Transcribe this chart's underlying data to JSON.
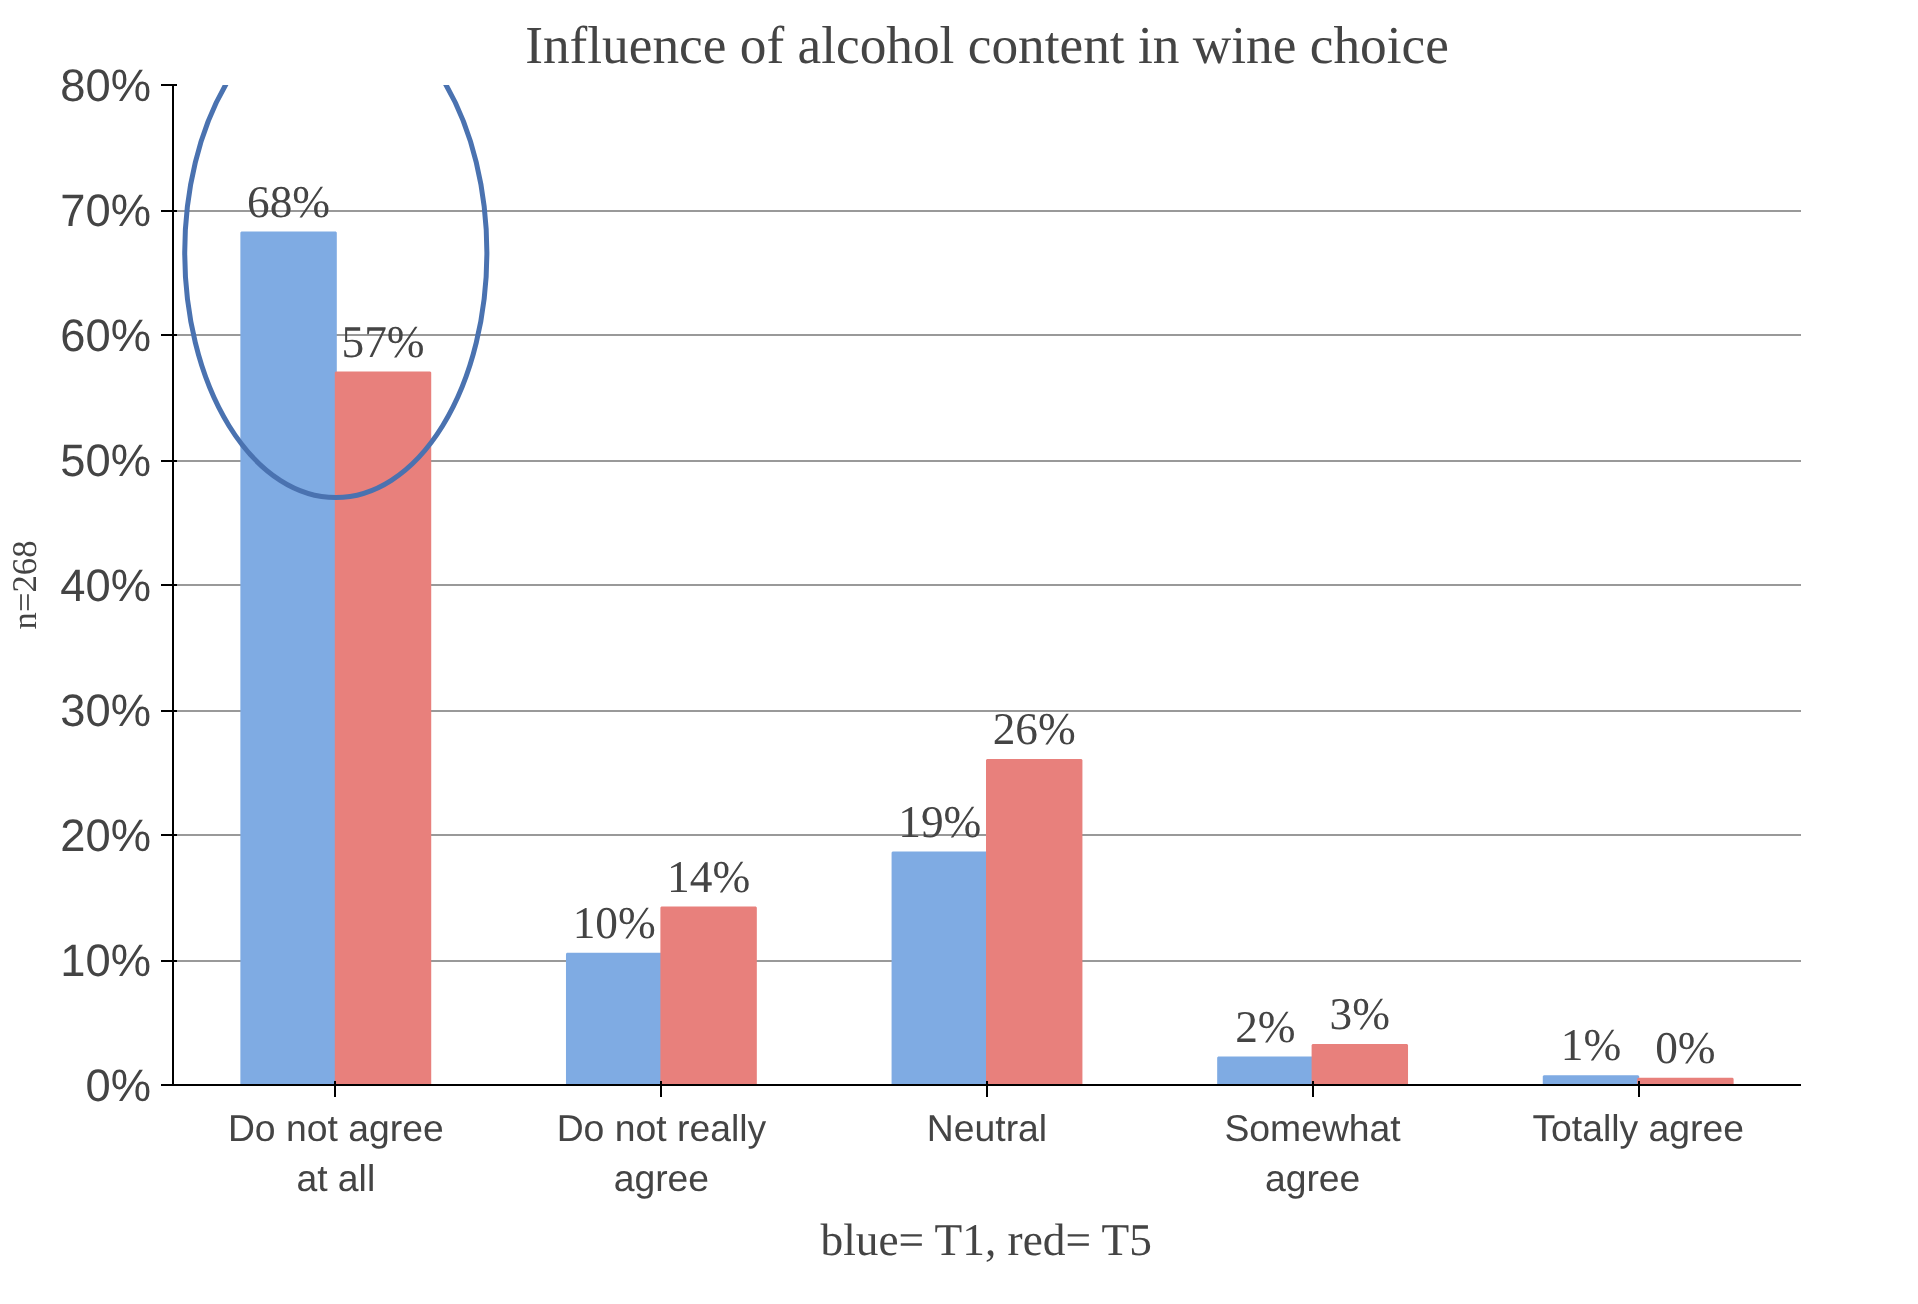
{
  "chart_data": {
    "type": "bar",
    "title": "Influence of alcohol content in wine choice",
    "xlabel": "blue= T1, red= T5",
    "ylabel": "n=268",
    "categories": [
      "Do not agree\nat all",
      "Do not really\nagree",
      "Neutral",
      "Somewhat\nagree",
      "Totally agree"
    ],
    "series": [
      {
        "color": "#7fabe3",
        "values": [
          68.2,
          10.5,
          18.6,
          2.2,
          0.7
        ],
        "value_labels": [
          "68%",
          "10%",
          "19%",
          "2%",
          "1%"
        ]
      },
      {
        "color": "#e8807c",
        "values": [
          57,
          14.2,
          26,
          3.2,
          0.5
        ],
        "value_labels": [
          "57%",
          "14%",
          "26%",
          "3%",
          "0%"
        ]
      }
    ],
    "ylim": [
      0,
      80
    ],
    "yticks": [
      {
        "value": 0,
        "label": "0%"
      },
      {
        "value": 10,
        "label": "10%"
      },
      {
        "value": 20,
        "label": "20%"
      },
      {
        "value": 30,
        "label": "30%"
      },
      {
        "value": 40,
        "label": "40%"
      },
      {
        "value": 50,
        "label": "50%"
      },
      {
        "value": 60,
        "label": "60%"
      },
      {
        "value": 70,
        "label": "70%"
      },
      {
        "value": 80,
        "label": "80%"
      }
    ],
    "grid": "y"
  }
}
